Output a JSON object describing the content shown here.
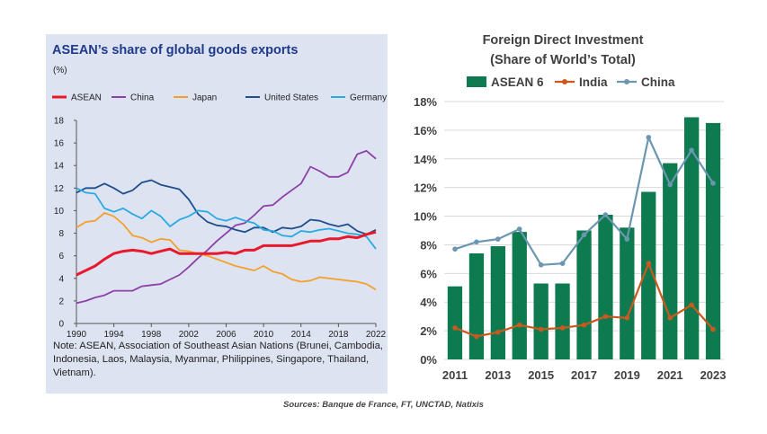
{
  "left_chart": {
    "title": "ASEAN’s share of global goods exports",
    "unit": "(%)",
    "note": "Note: ASEAN, Association of Southeast Asian Nations (Brunei, Cambodia, Indonesia, Laos, Malaysia, Myanmar, Philippines, Singapore, Thailand, Vietnam).",
    "colors": {
      "background": "#dde3f1",
      "title": "#1f3a8a"
    }
  },
  "right_chart": {
    "title_line1": "Foreign Direct Investment",
    "title_line2": "(Share of World’s Total)"
  },
  "sources": "Sources: Banque de France, FT, UNCTAD, Natixis",
  "chart_data": [
    {
      "type": "line",
      "title": "ASEAN’s share of global goods exports",
      "ylabel": "(%)",
      "ylim": [
        0,
        18
      ],
      "yticks": [
        0,
        2,
        4,
        6,
        8,
        10,
        12,
        14,
        16,
        18
      ],
      "xlim": [
        1990,
        2022
      ],
      "xticks": [
        1990,
        1994,
        1998,
        2002,
        2006,
        2010,
        2014,
        2018,
        2022
      ],
      "legend": "top",
      "grid": false,
      "x": [
        1990,
        1991,
        1992,
        1993,
        1994,
        1995,
        1996,
        1997,
        1998,
        1999,
        2000,
        2001,
        2002,
        2003,
        2004,
        2005,
        2006,
        2007,
        2008,
        2009,
        2010,
        2011,
        2012,
        2013,
        2014,
        2015,
        2016,
        2017,
        2018,
        2019,
        2020,
        2021,
        2022
      ],
      "series": [
        {
          "name": "ASEAN",
          "color": "#e8192c",
          "values": [
            4.3,
            4.7,
            5.1,
            5.7,
            6.2,
            6.4,
            6.5,
            6.4,
            6.2,
            6.4,
            6.6,
            6.2,
            6.2,
            6.2,
            6.2,
            6.2,
            6.3,
            6.2,
            6.5,
            6.5,
            6.9,
            6.9,
            6.9,
            6.9,
            7.1,
            7.3,
            7.3,
            7.5,
            7.5,
            7.7,
            7.6,
            7.9,
            8.1
          ]
        },
        {
          "name": "China",
          "color": "#8e3fa8",
          "values": [
            1.8,
            2.0,
            2.3,
            2.5,
            2.9,
            2.9,
            2.9,
            3.3,
            3.4,
            3.5,
            3.9,
            4.3,
            5.0,
            5.8,
            6.5,
            7.3,
            8.0,
            8.7,
            8.9,
            9.6,
            10.4,
            10.5,
            11.2,
            11.8,
            12.4,
            13.9,
            13.5,
            13.0,
            13.0,
            13.4,
            15.0,
            15.3,
            14.6
          ]
        },
        {
          "name": "Japan",
          "color": "#f5a02c",
          "values": [
            8.5,
            9.0,
            9.1,
            9.8,
            9.5,
            8.8,
            7.8,
            7.6,
            7.2,
            7.5,
            7.4,
            6.5,
            6.4,
            6.2,
            6.0,
            5.7,
            5.4,
            5.1,
            4.9,
            4.7,
            5.1,
            4.6,
            4.4,
            3.9,
            3.7,
            3.8,
            4.1,
            4.0,
            3.9,
            3.8,
            3.7,
            3.5,
            3.0
          ]
        },
        {
          "name": "United States",
          "color": "#1f4e8c",
          "values": [
            11.6,
            12.0,
            12.0,
            12.4,
            12.0,
            11.5,
            11.8,
            12.5,
            12.7,
            12.3,
            12.1,
            11.9,
            11.0,
            9.7,
            9.0,
            8.7,
            8.6,
            8.3,
            8.1,
            8.5,
            8.5,
            8.1,
            8.5,
            8.4,
            8.6,
            9.2,
            9.1,
            8.8,
            8.6,
            8.8,
            8.2,
            7.9,
            8.3
          ]
        },
        {
          "name": "Germany",
          "color": "#29abe2",
          "values": [
            12.0,
            11.6,
            11.5,
            10.2,
            9.9,
            10.2,
            9.7,
            9.3,
            10.0,
            9.5,
            8.6,
            9.2,
            9.5,
            10.0,
            9.9,
            9.3,
            9.1,
            9.4,
            9.1,
            8.9,
            8.3,
            8.2,
            7.8,
            7.7,
            8.2,
            8.1,
            8.3,
            8.4,
            8.2,
            8.0,
            7.9,
            7.7,
            6.6
          ]
        }
      ]
    },
    {
      "type": "bar",
      "title": "Foreign Direct Investment (Share of World’s Total)",
      "ylim": [
        0,
        18
      ],
      "yticks": [
        "0%",
        "2%",
        "4%",
        "6%",
        "8%",
        "10%",
        "12%",
        "14%",
        "16%",
        "18%"
      ],
      "xticks": [
        "2011",
        "2013",
        "2015",
        "2017",
        "2019",
        "2021",
        "2023"
      ],
      "legend": "top",
      "grid": true,
      "categories": [
        "2011",
        "2012",
        "2013",
        "2014",
        "2015",
        "2016",
        "2017",
        "2018",
        "2019",
        "2020",
        "2021",
        "2022",
        "2023"
      ],
      "series": [
        {
          "name": "ASEAN 6",
          "type": "bar",
          "color": "#0e7a50",
          "values": [
            5.1,
            7.4,
            7.9,
            8.9,
            5.3,
            5.3,
            9.0,
            10.1,
            9.2,
            11.7,
            13.7,
            16.9,
            16.5
          ]
        },
        {
          "name": "India",
          "type": "line",
          "color": "#c85a20",
          "values": [
            2.2,
            1.6,
            1.9,
            2.4,
            2.1,
            2.2,
            2.4,
            3.0,
            2.9,
            6.7,
            2.9,
            3.8,
            2.1
          ]
        },
        {
          "name": "China",
          "type": "line",
          "color": "#6a96b0",
          "values": [
            7.7,
            8.2,
            8.4,
            9.1,
            6.6,
            6.7,
            8.7,
            10.1,
            8.4,
            15.5,
            12.2,
            14.6,
            12.3
          ]
        }
      ]
    }
  ]
}
